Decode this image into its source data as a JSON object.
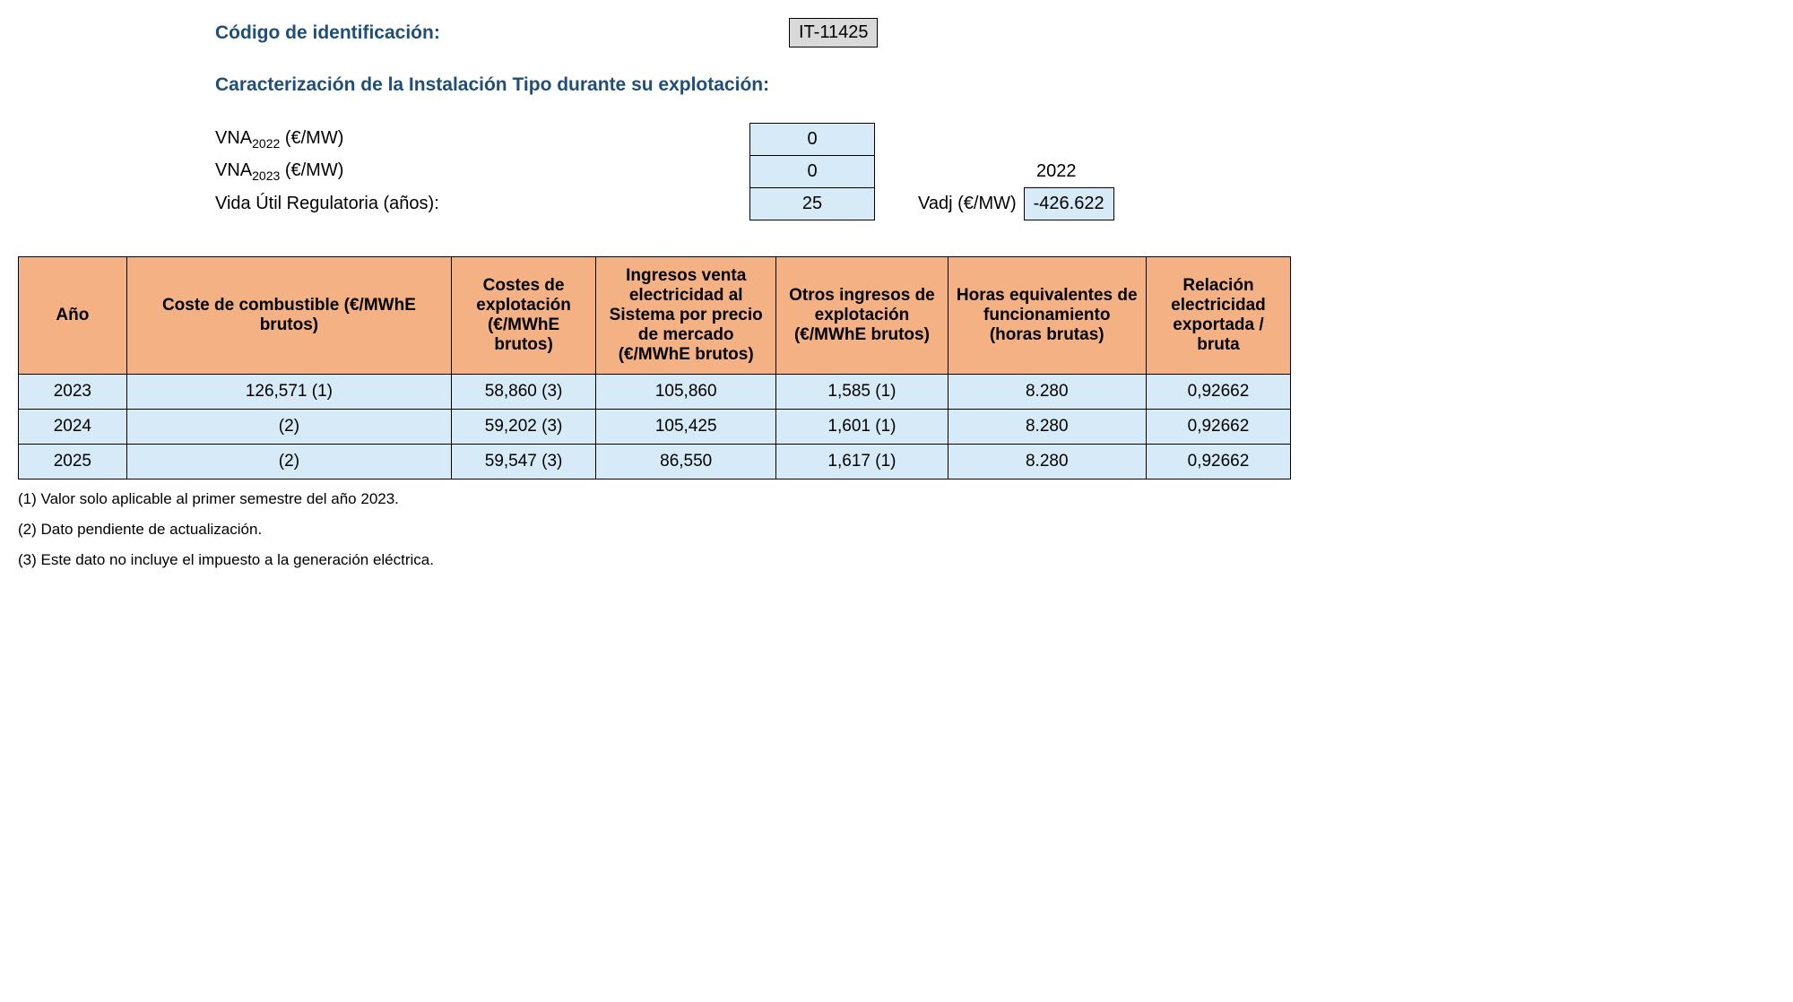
{
  "header": {
    "id_label": "Código de identificación:",
    "id_value": "IT-11425",
    "section_title": "Caracterización de la Instalación Tipo durante su explotación:"
  },
  "params": {
    "vna2022_label_prefix": "VNA",
    "vna2022_label_sub": "2022",
    "vna2022_label_suffix": " (€/MW)",
    "vna2022_value": "0",
    "vna2023_label_prefix": "VNA",
    "vna2023_label_sub": "2023",
    "vna2023_label_suffix": " (€/MW)",
    "vna2023_value": "0",
    "vida_label": "Vida Útil Regulatoria (años):",
    "vida_value": "25",
    "year_label": "2022",
    "vadj_label": "Vadj (€/MW)",
    "vadj_value": "-426.622"
  },
  "table": {
    "headers": {
      "year": "Año",
      "fuel": "Coste de combustible (€/MWhE brutos)",
      "opex": "Costes de explotación (€/MWhE brutos)",
      "income": "Ingresos venta electricidad al Sistema por precio de mercado (€/MWhE brutos)",
      "other": "Otros ingresos de explotación (€/MWhE brutos)",
      "hours": "Horas equivalentes de funcionamiento (horas brutas)",
      "ratio": "Relación electricidad exportada / bruta"
    },
    "rows": [
      {
        "year": "2023",
        "fuel": "126,571 (1)",
        "opex": "58,860 (3)",
        "income": "105,860",
        "other": "1,585 (1)",
        "hours": "8.280",
        "ratio": "0,92662"
      },
      {
        "year": "2024",
        "fuel": "(2)",
        "opex": "59,202 (3)",
        "income": "105,425",
        "other": "1,601 (1)",
        "hours": "8.280",
        "ratio": "0,92662"
      },
      {
        "year": "2025",
        "fuel": "(2)",
        "opex": "59,547 (3)",
        "income": "86,550",
        "other": "1,617 (1)",
        "hours": "8.280",
        "ratio": "0,92662"
      }
    ]
  },
  "footnotes": {
    "n1": "(1) Valor solo aplicable al primer semestre del año 2023.",
    "n2": "(2) Dato pendiente de actualización.",
    "n3": "(3) Este dato no incluye el impuesto a la generación eléctrica."
  },
  "colors": {
    "header_bg": "#f4b183",
    "cell_bg": "#d6eaf8",
    "title_color": "#1f4e79",
    "id_bg": "#d9d9d9"
  }
}
